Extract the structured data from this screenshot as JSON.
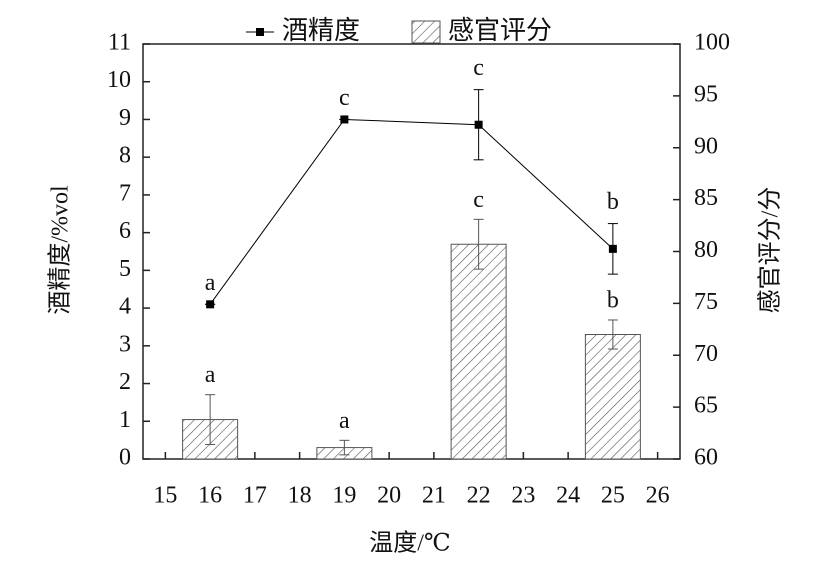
{
  "chart_data": {
    "type": "bar_line",
    "x_label": "温度/℃",
    "y_label": "酒精度/%vol",
    "y2_label": "感官评分/分",
    "x": [
      16,
      19,
      22,
      25
    ],
    "series": [
      {
        "name": "酒精度",
        "type": "line",
        "color": "#000000",
        "values": [
          4.1,
          9.0,
          8.86,
          5.57
        ],
        "errors": [
          0,
          0,
          0.93,
          0.67
        ],
        "letters": [
          "a",
          "c",
          "c",
          "b"
        ]
      },
      {
        "name": "感官评分",
        "type": "bar",
        "axis": "y2",
        "color": "#555555",
        "values": [
          63.8,
          61.1,
          80.7,
          72.0
        ],
        "errors": [
          2.4,
          0.7,
          2.4,
          1.4
        ],
        "letters": [
          "a",
          "a",
          "c",
          "b"
        ]
      }
    ],
    "xlim": [
      14.5,
      26.5
    ],
    "xticks": [
      15,
      16,
      17,
      18,
      19,
      20,
      21,
      22,
      23,
      24,
      25,
      26
    ],
    "ylim": [
      0,
      11
    ],
    "yticks": [
      0,
      1,
      2,
      3,
      4,
      5,
      6,
      7,
      8,
      9,
      10,
      11
    ],
    "y2lim": [
      60,
      100
    ],
    "y2ticks": [
      60,
      65,
      70,
      75,
      80,
      85,
      90,
      95,
      100
    ]
  }
}
